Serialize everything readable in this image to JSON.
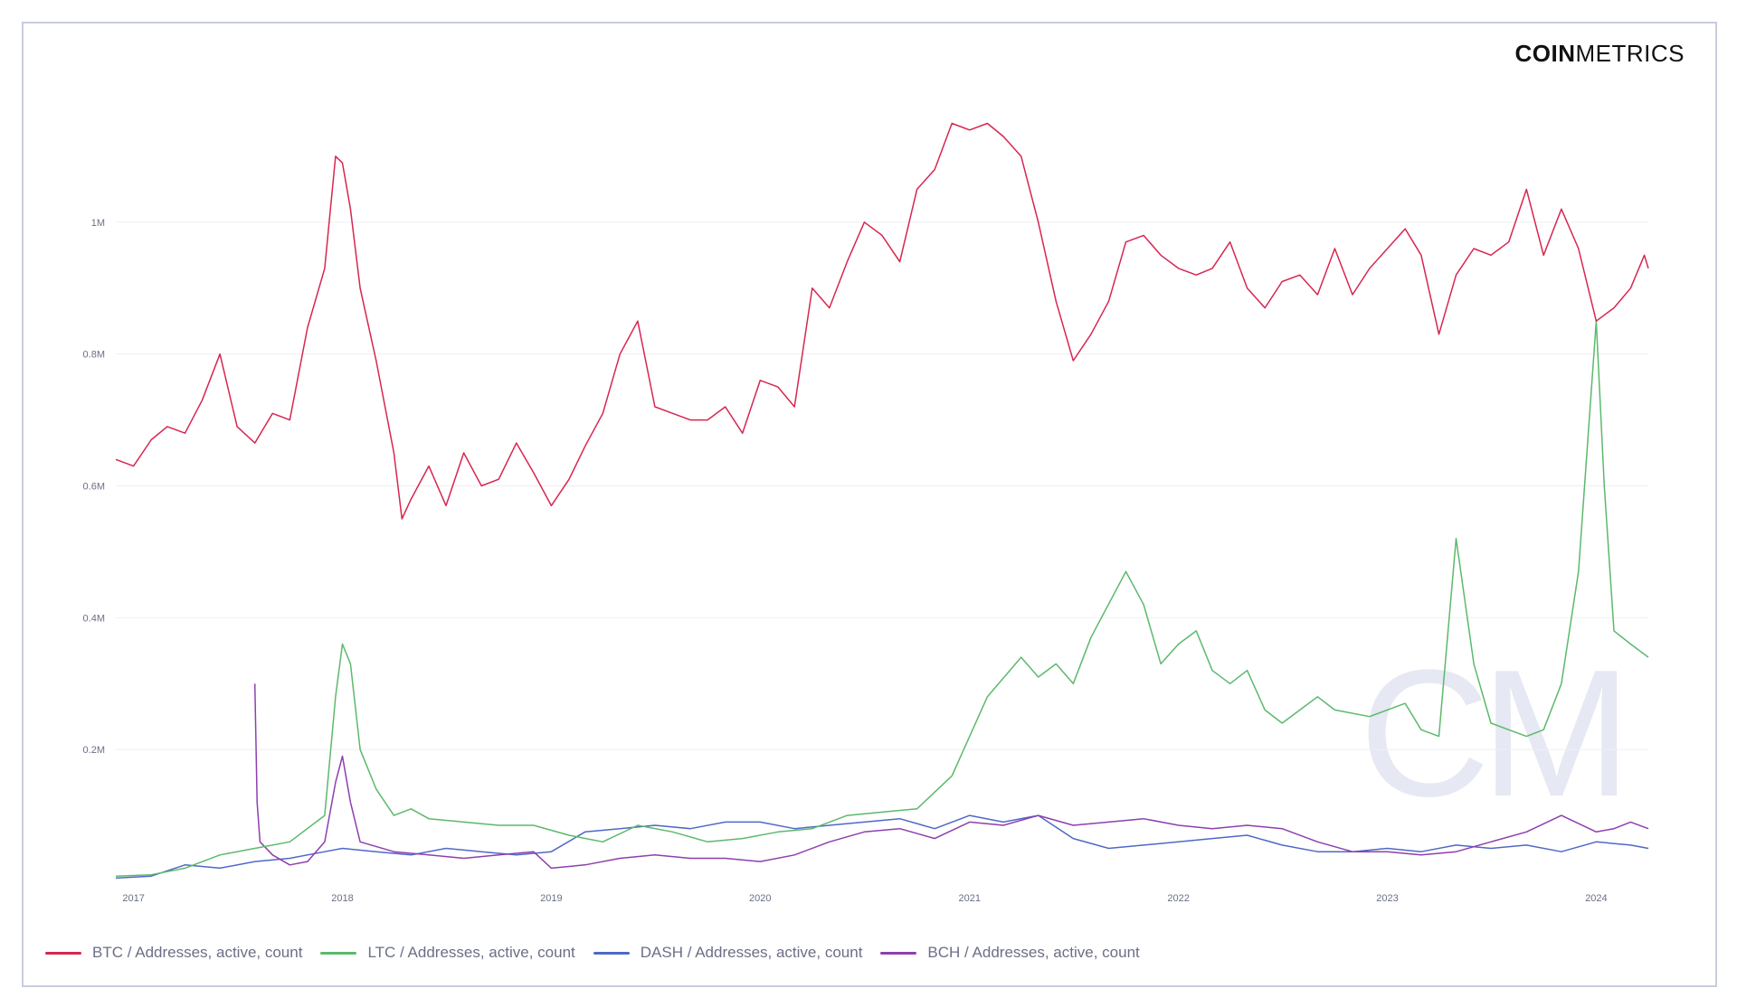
{
  "brand": {
    "logo_bold": "COIN",
    "logo_light": "METRICS",
    "watermark": "CM"
  },
  "chart_data": {
    "type": "line",
    "title": "",
    "xlabel": "",
    "ylabel": "",
    "ylim": [
      0,
      1200000
    ],
    "xlim": [
      "2016-12-01",
      "2024-04-01"
    ],
    "y_ticks": [
      {
        "value": 200000,
        "label": "0.2M"
      },
      {
        "value": 400000,
        "label": "0.4M"
      },
      {
        "value": 600000,
        "label": "0.6M"
      },
      {
        "value": 800000,
        "label": "0.8M"
      },
      {
        "value": 1000000,
        "label": "1M"
      }
    ],
    "x_ticks": [
      {
        "value": "2017-01-01",
        "label": "2017"
      },
      {
        "value": "2018-01-01",
        "label": "2018"
      },
      {
        "value": "2019-01-01",
        "label": "2019"
      },
      {
        "value": "2020-01-01",
        "label": "2020"
      },
      {
        "value": "2021-01-01",
        "label": "2021"
      },
      {
        "value": "2022-01-01",
        "label": "2022"
      },
      {
        "value": "2023-01-01",
        "label": "2023"
      },
      {
        "value": "2024-01-01",
        "label": "2024"
      }
    ],
    "grid": true,
    "legend_position": "bottom-left",
    "series": [
      {
        "name": "BTC / Addresses, active, count",
        "color": "#d7264f",
        "points": [
          [
            "2016-12-01",
            640000
          ],
          [
            "2017-01-01",
            630000
          ],
          [
            "2017-02-01",
            670000
          ],
          [
            "2017-03-01",
            690000
          ],
          [
            "2017-04-01",
            680000
          ],
          [
            "2017-05-01",
            730000
          ],
          [
            "2017-06-01",
            800000
          ],
          [
            "2017-07-01",
            690000
          ],
          [
            "2017-08-01",
            665000
          ],
          [
            "2017-09-01",
            710000
          ],
          [
            "2017-10-01",
            700000
          ],
          [
            "2017-11-01",
            840000
          ],
          [
            "2017-12-01",
            930000
          ],
          [
            "2017-12-20",
            1100000
          ],
          [
            "2018-01-01",
            1090000
          ],
          [
            "2018-01-15",
            1020000
          ],
          [
            "2018-02-01",
            900000
          ],
          [
            "2018-03-01",
            790000
          ],
          [
            "2018-04-01",
            650000
          ],
          [
            "2018-04-15",
            550000
          ],
          [
            "2018-05-01",
            580000
          ],
          [
            "2018-06-01",
            630000
          ],
          [
            "2018-07-01",
            570000
          ],
          [
            "2018-08-01",
            650000
          ],
          [
            "2018-09-01",
            600000
          ],
          [
            "2018-10-01",
            610000
          ],
          [
            "2018-11-01",
            665000
          ],
          [
            "2018-12-01",
            620000
          ],
          [
            "2019-01-01",
            570000
          ],
          [
            "2019-02-01",
            610000
          ],
          [
            "2019-03-01",
            660000
          ],
          [
            "2019-04-01",
            710000
          ],
          [
            "2019-05-01",
            800000
          ],
          [
            "2019-06-01",
            850000
          ],
          [
            "2019-07-01",
            720000
          ],
          [
            "2019-08-01",
            710000
          ],
          [
            "2019-09-01",
            700000
          ],
          [
            "2019-10-01",
            700000
          ],
          [
            "2019-11-01",
            720000
          ],
          [
            "2019-12-01",
            680000
          ],
          [
            "2020-01-01",
            760000
          ],
          [
            "2020-02-01",
            750000
          ],
          [
            "2020-03-01",
            720000
          ],
          [
            "2020-04-01",
            900000
          ],
          [
            "2020-05-01",
            870000
          ],
          [
            "2020-06-01",
            940000
          ],
          [
            "2020-07-01",
            1000000
          ],
          [
            "2020-08-01",
            980000
          ],
          [
            "2020-09-01",
            940000
          ],
          [
            "2020-10-01",
            1050000
          ],
          [
            "2020-11-01",
            1080000
          ],
          [
            "2020-12-01",
            1150000
          ],
          [
            "2021-01-01",
            1140000
          ],
          [
            "2021-02-01",
            1150000
          ],
          [
            "2021-03-01",
            1130000
          ],
          [
            "2021-04-01",
            1100000
          ],
          [
            "2021-05-01",
            1000000
          ],
          [
            "2021-06-01",
            880000
          ],
          [
            "2021-07-01",
            790000
          ],
          [
            "2021-08-01",
            830000
          ],
          [
            "2021-09-01",
            880000
          ],
          [
            "2021-10-01",
            970000
          ],
          [
            "2021-11-01",
            980000
          ],
          [
            "2021-12-01",
            950000
          ],
          [
            "2022-01-01",
            930000
          ],
          [
            "2022-02-01",
            920000
          ],
          [
            "2022-03-01",
            930000
          ],
          [
            "2022-04-01",
            970000
          ],
          [
            "2022-05-01",
            900000
          ],
          [
            "2022-06-01",
            870000
          ],
          [
            "2022-07-01",
            910000
          ],
          [
            "2022-08-01",
            920000
          ],
          [
            "2022-09-01",
            890000
          ],
          [
            "2022-10-01",
            960000
          ],
          [
            "2022-11-01",
            890000
          ],
          [
            "2022-12-01",
            930000
          ],
          [
            "2023-01-01",
            960000
          ],
          [
            "2023-02-01",
            990000
          ],
          [
            "2023-03-01",
            950000
          ],
          [
            "2023-04-01",
            830000
          ],
          [
            "2023-05-01",
            920000
          ],
          [
            "2023-06-01",
            960000
          ],
          [
            "2023-07-01",
            950000
          ],
          [
            "2023-08-01",
            970000
          ],
          [
            "2023-09-01",
            1050000
          ],
          [
            "2023-10-01",
            950000
          ],
          [
            "2023-11-01",
            1020000
          ],
          [
            "2023-12-01",
            960000
          ],
          [
            "2024-01-01",
            850000
          ],
          [
            "2024-02-01",
            870000
          ],
          [
            "2024-03-01",
            900000
          ],
          [
            "2024-03-25",
            950000
          ],
          [
            "2024-04-01",
            930000
          ]
        ]
      },
      {
        "name": "LTC / Addresses, active, count",
        "color": "#5cb96b",
        "points": [
          [
            "2016-12-01",
            8000
          ],
          [
            "2017-02-01",
            10000
          ],
          [
            "2017-04-01",
            20000
          ],
          [
            "2017-06-01",
            40000
          ],
          [
            "2017-08-01",
            50000
          ],
          [
            "2017-10-01",
            60000
          ],
          [
            "2017-12-01",
            100000
          ],
          [
            "2017-12-20",
            280000
          ],
          [
            "2018-01-01",
            360000
          ],
          [
            "2018-01-15",
            330000
          ],
          [
            "2018-02-01",
            200000
          ],
          [
            "2018-03-01",
            140000
          ],
          [
            "2018-04-01",
            100000
          ],
          [
            "2018-05-01",
            110000
          ],
          [
            "2018-06-01",
            95000
          ],
          [
            "2018-08-01",
            90000
          ],
          [
            "2018-10-01",
            85000
          ],
          [
            "2018-12-01",
            85000
          ],
          [
            "2019-02-01",
            70000
          ],
          [
            "2019-04-01",
            60000
          ],
          [
            "2019-06-01",
            85000
          ],
          [
            "2019-08-01",
            75000
          ],
          [
            "2019-10-01",
            60000
          ],
          [
            "2019-12-01",
            65000
          ],
          [
            "2020-02-01",
            75000
          ],
          [
            "2020-04-01",
            80000
          ],
          [
            "2020-06-01",
            100000
          ],
          [
            "2020-08-01",
            105000
          ],
          [
            "2020-10-01",
            110000
          ],
          [
            "2020-12-01",
            160000
          ],
          [
            "2021-02-01",
            280000
          ],
          [
            "2021-04-01",
            340000
          ],
          [
            "2021-05-01",
            310000
          ],
          [
            "2021-06-01",
            330000
          ],
          [
            "2021-07-01",
            300000
          ],
          [
            "2021-08-01",
            370000
          ],
          [
            "2021-10-01",
            470000
          ],
          [
            "2021-11-01",
            420000
          ],
          [
            "2021-12-01",
            330000
          ],
          [
            "2022-01-01",
            360000
          ],
          [
            "2022-02-01",
            380000
          ],
          [
            "2022-03-01",
            320000
          ],
          [
            "2022-04-01",
            300000
          ],
          [
            "2022-05-01",
            320000
          ],
          [
            "2022-06-01",
            260000
          ],
          [
            "2022-07-01",
            240000
          ],
          [
            "2022-08-01",
            260000
          ],
          [
            "2022-09-01",
            280000
          ],
          [
            "2022-10-01",
            260000
          ],
          [
            "2022-12-01",
            250000
          ],
          [
            "2023-02-01",
            270000
          ],
          [
            "2023-03-01",
            230000
          ],
          [
            "2023-04-01",
            220000
          ],
          [
            "2023-05-01",
            520000
          ],
          [
            "2023-06-01",
            330000
          ],
          [
            "2023-07-01",
            240000
          ],
          [
            "2023-08-01",
            230000
          ],
          [
            "2023-09-01",
            220000
          ],
          [
            "2023-10-01",
            230000
          ],
          [
            "2023-11-01",
            300000
          ],
          [
            "2023-12-01",
            470000
          ],
          [
            "2024-01-01",
            850000
          ],
          [
            "2024-01-15",
            600000
          ],
          [
            "2024-02-01",
            380000
          ],
          [
            "2024-03-01",
            360000
          ],
          [
            "2024-04-01",
            340000
          ]
        ]
      },
      {
        "name": "DASH / Addresses, active, count",
        "color": "#4f68c7",
        "points": [
          [
            "2016-12-01",
            5000
          ],
          [
            "2017-02-01",
            8000
          ],
          [
            "2017-04-01",
            25000
          ],
          [
            "2017-06-01",
            20000
          ],
          [
            "2017-08-01",
            30000
          ],
          [
            "2017-10-01",
            35000
          ],
          [
            "2017-12-01",
            45000
          ],
          [
            "2018-01-01",
            50000
          ],
          [
            "2018-03-01",
            45000
          ],
          [
            "2018-05-01",
            40000
          ],
          [
            "2018-07-01",
            50000
          ],
          [
            "2018-09-01",
            45000
          ],
          [
            "2018-11-01",
            40000
          ],
          [
            "2019-01-01",
            45000
          ],
          [
            "2019-03-01",
            75000
          ],
          [
            "2019-05-01",
            80000
          ],
          [
            "2019-07-01",
            85000
          ],
          [
            "2019-09-01",
            80000
          ],
          [
            "2019-11-01",
            90000
          ],
          [
            "2020-01-01",
            90000
          ],
          [
            "2020-03-01",
            80000
          ],
          [
            "2020-05-01",
            85000
          ],
          [
            "2020-07-01",
            90000
          ],
          [
            "2020-09-01",
            95000
          ],
          [
            "2020-11-01",
            80000
          ],
          [
            "2021-01-01",
            100000
          ],
          [
            "2021-03-01",
            90000
          ],
          [
            "2021-05-01",
            100000
          ],
          [
            "2021-07-01",
            65000
          ],
          [
            "2021-09-01",
            50000
          ],
          [
            "2021-11-01",
            55000
          ],
          [
            "2022-01-01",
            60000
          ],
          [
            "2022-03-01",
            65000
          ],
          [
            "2022-05-01",
            70000
          ],
          [
            "2022-07-01",
            55000
          ],
          [
            "2022-09-01",
            45000
          ],
          [
            "2022-11-01",
            45000
          ],
          [
            "2023-01-01",
            50000
          ],
          [
            "2023-03-01",
            45000
          ],
          [
            "2023-05-01",
            55000
          ],
          [
            "2023-07-01",
            50000
          ],
          [
            "2023-09-01",
            55000
          ],
          [
            "2023-11-01",
            45000
          ],
          [
            "2024-01-01",
            60000
          ],
          [
            "2024-03-01",
            55000
          ],
          [
            "2024-04-01",
            50000
          ]
        ]
      },
      {
        "name": "BCH / Addresses, active, count",
        "color": "#8e3fae",
        "points": [
          [
            "2017-08-01",
            300000
          ],
          [
            "2017-08-05",
            120000
          ],
          [
            "2017-08-10",
            60000
          ],
          [
            "2017-09-01",
            40000
          ],
          [
            "2017-10-01",
            25000
          ],
          [
            "2017-11-01",
            30000
          ],
          [
            "2017-12-01",
            60000
          ],
          [
            "2017-12-20",
            150000
          ],
          [
            "2018-01-01",
            190000
          ],
          [
            "2018-01-15",
            120000
          ],
          [
            "2018-02-01",
            60000
          ],
          [
            "2018-04-01",
            45000
          ],
          [
            "2018-06-01",
            40000
          ],
          [
            "2018-08-01",
            35000
          ],
          [
            "2018-10-01",
            40000
          ],
          [
            "2018-12-01",
            45000
          ],
          [
            "2019-01-01",
            20000
          ],
          [
            "2019-03-01",
            25000
          ],
          [
            "2019-05-01",
            35000
          ],
          [
            "2019-07-01",
            40000
          ],
          [
            "2019-09-01",
            35000
          ],
          [
            "2019-11-01",
            35000
          ],
          [
            "2020-01-01",
            30000
          ],
          [
            "2020-03-01",
            40000
          ],
          [
            "2020-05-01",
            60000
          ],
          [
            "2020-07-01",
            75000
          ],
          [
            "2020-09-01",
            80000
          ],
          [
            "2020-11-01",
            65000
          ],
          [
            "2021-01-01",
            90000
          ],
          [
            "2021-03-01",
            85000
          ],
          [
            "2021-05-01",
            100000
          ],
          [
            "2021-07-01",
            85000
          ],
          [
            "2021-09-01",
            90000
          ],
          [
            "2021-11-01",
            95000
          ],
          [
            "2022-01-01",
            85000
          ],
          [
            "2022-03-01",
            80000
          ],
          [
            "2022-05-01",
            85000
          ],
          [
            "2022-07-01",
            80000
          ],
          [
            "2022-09-01",
            60000
          ],
          [
            "2022-11-01",
            45000
          ],
          [
            "2023-01-01",
            45000
          ],
          [
            "2023-03-01",
            40000
          ],
          [
            "2023-05-01",
            45000
          ],
          [
            "2023-07-01",
            60000
          ],
          [
            "2023-09-01",
            75000
          ],
          [
            "2023-11-01",
            100000
          ],
          [
            "2024-01-01",
            75000
          ],
          [
            "2024-02-01",
            80000
          ],
          [
            "2024-03-01",
            90000
          ],
          [
            "2024-04-01",
            80000
          ]
        ]
      }
    ]
  }
}
